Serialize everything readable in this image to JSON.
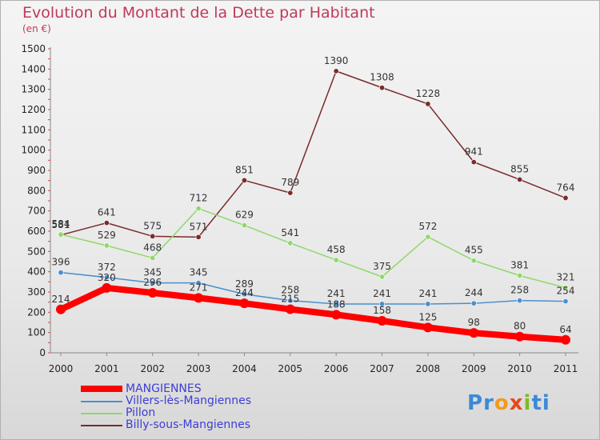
{
  "title": "Evolution du Montant de la Dette par Habitant",
  "subtitle": "(en €)",
  "logo_text": "Proxiti",
  "chart_data": {
    "type": "line",
    "x": [
      "2000",
      "2001",
      "2002",
      "2003",
      "2004",
      "2005",
      "2006",
      "2007",
      "2008",
      "2009",
      "2010",
      "2011"
    ],
    "ylim": [
      0,
      1500
    ],
    "yticks": [
      0,
      100,
      200,
      300,
      400,
      500,
      600,
      700,
      800,
      900,
      1000,
      1100,
      1200,
      1300,
      1400,
      1500
    ],
    "grid": false,
    "legend_position": "bottom-left",
    "series": [
      {
        "name": "MANGIENNES",
        "color": "#ff0000",
        "label_color": "#3d3dd6",
        "thick": true,
        "values": [
          214,
          320,
          296,
          271,
          244,
          215,
          188,
          158,
          125,
          98,
          80,
          64
        ],
        "labels": [
          "214",
          "320",
          "296",
          "271",
          "244",
          "215",
          "188",
          "158",
          "125",
          "98",
          "80",
          "64"
        ]
      },
      {
        "name": "Villers-lès-Mangiennes",
        "color": "#4a8fcf",
        "label_color": "#3d3dd6",
        "thick": false,
        "values": [
          396,
          372,
          345,
          345,
          289,
          258,
          241,
          241,
          241,
          244,
          258,
          254
        ],
        "labels": [
          "396",
          "372",
          "345",
          "345",
          "289",
          "258",
          "241",
          "241",
          "241",
          "244",
          "258",
          "254"
        ]
      },
      {
        "name": "Pillon",
        "color": "#8fd86a",
        "label_color": "#3d3dd6",
        "thick": false,
        "values": [
          584,
          529,
          468,
          712,
          629,
          541,
          458,
          375,
          572,
          455,
          381,
          321
        ],
        "labels": [
          "584",
          "529",
          "468",
          "712",
          "629",
          "541",
          "458",
          "375",
          "572",
          "455",
          "381",
          "321"
        ]
      },
      {
        "name": "Billy-sous-Mangiennes",
        "color": "#7a2a2a",
        "label_color": "#3d3dd6",
        "thick": false,
        "values": [
          581,
          641,
          575,
          571,
          851,
          789,
          1390,
          1308,
          1228,
          941,
          855,
          764
        ],
        "labels": [
          "581",
          "641",
          "575",
          "571",
          "851",
          "789",
          "1390",
          "1308",
          "1228",
          "941",
          "855",
          "764"
        ]
      }
    ]
  }
}
